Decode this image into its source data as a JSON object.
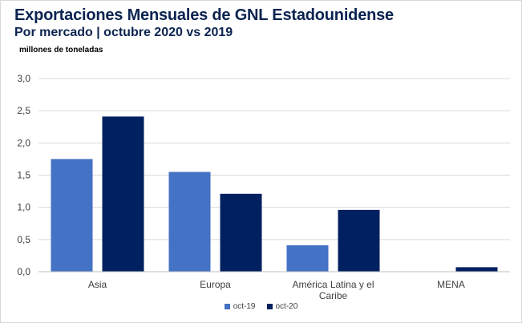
{
  "chart_data": {
    "type": "bar",
    "title": "Exportaciones Mensuales de GNL Estadounidense",
    "subtitle": "Por mercado | octubre 2020 vs 2019",
    "ylabel": "millones de toneladas",
    "xlabel": "",
    "categories": [
      "Asia",
      "Europa",
      "América Latina y el Caribe",
      "MENA"
    ],
    "category_lines": [
      [
        "Asia"
      ],
      [
        "Europa"
      ],
      [
        "América Latina y el",
        "Caribe"
      ],
      [
        "MENA"
      ]
    ],
    "series": [
      {
        "name": "oct-19",
        "values": [
          1.75,
          1.55,
          0.41,
          0.0
        ],
        "color": "#4472c4"
      },
      {
        "name": "oct-20",
        "values": [
          2.41,
          1.21,
          0.96,
          0.07
        ],
        "color": "#002060"
      }
    ],
    "ylim": [
      0,
      3.0
    ],
    "yticks": [
      "0,0",
      "0,5",
      "1,0",
      "1,5",
      "2,0",
      "2,5",
      "3,0"
    ],
    "grid": true,
    "gridline_color": "#d9d9d9",
    "legend_position": "bottom"
  }
}
